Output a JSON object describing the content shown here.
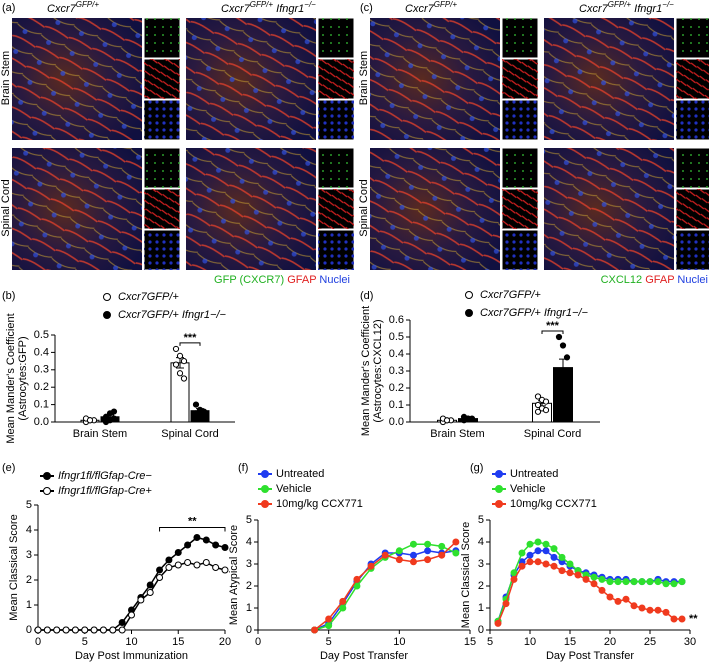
{
  "panels": [
    {
      "label": "(a)",
      "columns": [
        {
          "gene": "Cxcr7",
          "sup": "GFP/+"
        },
        {
          "gene": "Cxcr7",
          "sup": "GFP/+",
          "gene2": "Ifngr1",
          "sup2": "−/−"
        }
      ],
      "rows": [
        "Brain Stem",
        "Spinal Cord"
      ],
      "stain": [
        "GFP (CXCR7)",
        "GFAP",
        "Nuclei"
      ]
    },
    {
      "label": "(c)",
      "columns": [
        {
          "gene": "Cxcr7",
          "sup": "GFP/+"
        },
        {
          "gene": "Cxcr7",
          "sup": "GFP/+",
          "gene2": "Ifngr1",
          "sup2": "−/−"
        }
      ],
      "rows": [
        "Brain Stem",
        "Spinal Cord"
      ],
      "stain": [
        "CXCL12",
        "GFAP",
        "Nuclei"
      ]
    }
  ],
  "chart_data": [
    {
      "type": "bar",
      "label": "(b)",
      "ylabel": [
        "Mean Mander's Coefficient",
        "(Astrocytes:GFP)"
      ],
      "categories": [
        "Brain Stem",
        "Spinal Cord"
      ],
      "series": [
        {
          "name": "Cxcr7GFP/+",
          "color": "#ffffff",
          "marker": "open",
          "values": [
            0.01,
            0.34
          ],
          "errors": [
            0.005,
            0.03
          ],
          "points": [
            [
              0.0,
              0.01,
              0.01,
              0.02,
              0.01
            ],
            [
              0.42,
              0.38,
              0.35,
              0.33,
              0.28,
              0.25
            ]
          ]
        },
        {
          "name": "Cxcr7GFP/+ Ifngr1−/−",
          "color": "#000000",
          "marker": "filled",
          "values": [
            0.03,
            0.065
          ],
          "errors": [
            0.01,
            0.012
          ],
          "points": [
            [
              0.0,
              0.01,
              0.02,
              0.03,
              0.05,
              0.06
            ],
            [
              0.1,
              0.07,
              0.06,
              0.05,
              0.04
            ]
          ]
        }
      ],
      "ylim": [
        0,
        0.5
      ],
      "yticks": [
        {
          "value": 0,
          "label": "0.0"
        },
        0.1,
        0.2,
        0.3,
        0.4,
        0.5
      ],
      "annotation": "***"
    },
    {
      "type": "bar",
      "label": "(d)",
      "ylabel": [
        "Mean Mander's Coefficient",
        "(Astrocytes:CXCL12)"
      ],
      "categories": [
        "Brain Stem",
        "Spinal Cord"
      ],
      "series": [
        {
          "name": "Cxcr7GFP/+",
          "color": "#ffffff",
          "marker": "open",
          "values": [
            0.01,
            0.11
          ],
          "errors": [
            0.005,
            0.015
          ],
          "points": [
            [
              0.0,
              0.01,
              0.01,
              0.02,
              0.01
            ],
            [
              0.15,
              0.13,
              0.12,
              0.1,
              0.08,
              0.07,
              0.06
            ]
          ]
        },
        {
          "name": "Cxcr7GFP/+ Ifngr1−/−",
          "color": "#000000",
          "marker": "filled",
          "values": [
            0.02,
            0.32
          ],
          "errors": [
            0.005,
            0.05
          ],
          "points": [
            [
              0.01,
              0.02,
              0.02,
              0.03,
              0.02
            ],
            [
              0.5,
              0.45,
              0.38,
              0.3,
              0.25,
              0.2
            ]
          ]
        }
      ],
      "ylim": [
        0,
        0.6
      ],
      "yticks": [
        {
          "value": 0,
          "label": "0.0"
        },
        0.1,
        0.2,
        0.3,
        0.4,
        0.5,
        0.6
      ],
      "annotation": "***"
    },
    {
      "type": "line",
      "label": "(e)",
      "xlabel": "Day Post Immunization",
      "ylabel": [
        "Mean Classical Score"
      ],
      "x": [
        0,
        1,
        2,
        3,
        4,
        5,
        6,
        7,
        8,
        9,
        10,
        11,
        12,
        13,
        14,
        15,
        16,
        17,
        18,
        19,
        20
      ],
      "series": [
        {
          "name": "Ifngr1fl/flGfap-Cre−",
          "color": "#000000",
          "marker": "filled",
          "values": [
            0,
            0,
            0,
            0,
            0,
            0,
            0,
            0,
            0,
            0.3,
            0.8,
            1.3,
            1.8,
            2.4,
            2.8,
            3.1,
            3.4,
            3.7,
            3.6,
            3.4,
            3.3
          ]
        },
        {
          "name": "Ifngr1fl/flGfap-Cre+",
          "color": "#000000",
          "marker": "open",
          "values": [
            0,
            0,
            0,
            0,
            0,
            0,
            0,
            0,
            0,
            0,
            0.6,
            1.2,
            1.5,
            2.1,
            2.5,
            2.6,
            2.7,
            2.6,
            2.7,
            2.5,
            2.4
          ]
        }
      ],
      "xlim": [
        0,
        20
      ],
      "xticks": [
        0,
        5,
        10,
        15,
        20
      ],
      "ylim": [
        0,
        5
      ],
      "yticks": [
        0,
        1,
        2,
        3,
        4,
        5
      ],
      "annotation": "**"
    },
    {
      "type": "line",
      "label": "(f)",
      "xlabel": "Day Post Transfer",
      "ylabel": [
        "Mean Atypical Score"
      ],
      "x": [
        4,
        5,
        6,
        7,
        8,
        9,
        10,
        11,
        12,
        13,
        14
      ],
      "series": [
        {
          "name": "Untreated",
          "color": "#1f3cf0",
          "marker": "filled",
          "values": [
            0,
            0.3,
            1.2,
            2.2,
            3,
            3.5,
            3.5,
            3.4,
            3.6,
            3.5,
            3.6
          ]
        },
        {
          "name": "Vehicle",
          "color": "#2ee02e",
          "marker": "filled",
          "values": [
            0,
            0.2,
            1,
            2,
            2.8,
            3.3,
            3.6,
            3.9,
            3.9,
            3.8,
            3.5
          ]
        },
        {
          "name": "10mg/kg CCX771",
          "color": "#f03a1e",
          "marker": "filled",
          "values": [
            0,
            0.5,
            1.3,
            2.3,
            2.9,
            3.4,
            3.2,
            3.1,
            3.2,
            3.4,
            4.0
          ]
        }
      ],
      "xlim": [
        0,
        15
      ],
      "xticks": [
        0,
        5,
        10,
        15
      ],
      "ylim": [
        0,
        5
      ],
      "yticks": [
        0,
        1,
        2,
        3,
        4,
        5
      ]
    },
    {
      "type": "line",
      "label": "(g)",
      "xlabel": "Day Post Transfer",
      "ylabel": [
        "Mean Classical Score"
      ],
      "x": [
        6,
        7,
        8,
        9,
        10,
        11,
        12,
        13,
        14,
        15,
        16,
        17,
        18,
        19,
        20,
        21,
        22,
        23,
        24,
        25,
        26,
        27,
        28,
        29
      ],
      "series": [
        {
          "name": "Untreated",
          "color": "#1f3cf0",
          "marker": "filled",
          "values": [
            0.4,
            1.5,
            2.5,
            3.1,
            3.4,
            3.6,
            3.6,
            3.3,
            3.1,
            2.9,
            2.7,
            2.6,
            2.5,
            2.4,
            2.3,
            2.3,
            2.3,
            2.2,
            2.2,
            2.2,
            2.3,
            2.2,
            2.2,
            2.2
          ]
        },
        {
          "name": "Vehicle",
          "color": "#2ee02e",
          "marker": "filled",
          "values": [
            0.4,
            1.4,
            2.6,
            3.5,
            3.9,
            4.0,
            3.9,
            3.7,
            3.3,
            3.0,
            2.7,
            2.5,
            2.4,
            2.3,
            2.2,
            2.2,
            2.2,
            2.2,
            2.2,
            2.2,
            2.2,
            2.1,
            2.1,
            2.2
          ]
        },
        {
          "name": "10mg/kg CCX771",
          "color": "#f03a1e",
          "marker": "filled",
          "values": [
            0.3,
            1.2,
            2.3,
            2.9,
            3.1,
            3.1,
            3.0,
            2.9,
            2.7,
            2.6,
            2.5,
            2.3,
            2.1,
            1.8,
            1.5,
            1.3,
            1.4,
            1.1,
            1.0,
            0.9,
            0.9,
            0.8,
            0.5,
            0.5
          ]
        }
      ],
      "xlim": [
        5,
        30
      ],
      "xticks": [
        5,
        10,
        15,
        20,
        25,
        30
      ],
      "ylim": [
        0,
        5
      ],
      "yticks": [
        0,
        1,
        2,
        3,
        4,
        5
      ],
      "annotation": "**"
    }
  ]
}
